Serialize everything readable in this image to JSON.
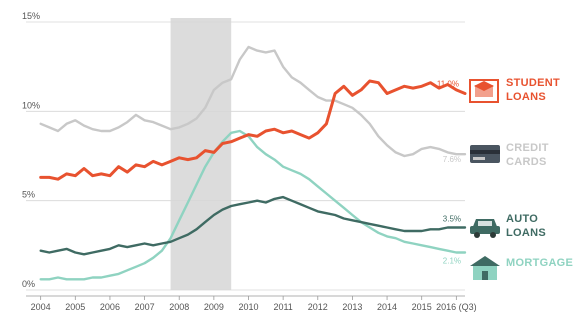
{
  "chart_data": {
    "type": "line",
    "ylim": [
      0,
      15
    ],
    "yticks": [
      "0%",
      "5%",
      "10%",
      "15%"
    ],
    "ytick_values": [
      0,
      5,
      10,
      15
    ],
    "xlim": [
      2003.75,
      2016.25
    ],
    "xtick_labels": [
      "2004",
      "2005",
      "2006",
      "2007",
      "2008",
      "2009",
      "2010",
      "2011",
      "2012",
      "2013",
      "2014",
      "2015",
      "2016 (Q3)"
    ],
    "xtick_values": [
      2004,
      2005,
      2006,
      2007,
      2008,
      2009,
      2010,
      2011,
      2012,
      2013,
      2014,
      2015,
      2016
    ],
    "shaded_period": [
      2007.75,
      2009.5
    ],
    "grid": "horizontal",
    "series": [
      {
        "name": "STUDENT LOANS",
        "color": "#e8522f",
        "icon": "graduation-cap-icon",
        "end_label": "11.0%",
        "points": [
          [
            2004,
            6.3
          ],
          [
            2004.25,
            6.3
          ],
          [
            2004.5,
            6.2
          ],
          [
            2004.75,
            6.5
          ],
          [
            2005,
            6.4
          ],
          [
            2005.25,
            6.8
          ],
          [
            2005.5,
            6.4
          ],
          [
            2005.75,
            6.5
          ],
          [
            2006,
            6.4
          ],
          [
            2006.25,
            6.9
          ],
          [
            2006.5,
            6.6
          ],
          [
            2006.75,
            7.0
          ],
          [
            2007,
            6.9
          ],
          [
            2007.25,
            7.2
          ],
          [
            2007.5,
            7.0
          ],
          [
            2007.75,
            7.2
          ],
          [
            2008,
            7.4
          ],
          [
            2008.25,
            7.3
          ],
          [
            2008.5,
            7.4
          ],
          [
            2008.75,
            7.8
          ],
          [
            2009,
            7.7
          ],
          [
            2009.25,
            8.2
          ],
          [
            2009.5,
            8.3
          ],
          [
            2009.75,
            8.5
          ],
          [
            2010,
            8.7
          ],
          [
            2010.25,
            8.6
          ],
          [
            2010.5,
            8.9
          ],
          [
            2010.75,
            9.0
          ],
          [
            2011,
            8.8
          ],
          [
            2011.25,
            8.9
          ],
          [
            2011.5,
            8.7
          ],
          [
            2011.75,
            8.5
          ],
          [
            2012,
            8.8
          ],
          [
            2012.25,
            9.3
          ],
          [
            2012.5,
            11.0
          ],
          [
            2012.75,
            11.4
          ],
          [
            2013,
            10.9
          ],
          [
            2013.25,
            11.2
          ],
          [
            2013.5,
            11.7
          ],
          [
            2013.75,
            11.6
          ],
          [
            2014,
            11.0
          ],
          [
            2014.25,
            11.2
          ],
          [
            2014.5,
            11.4
          ],
          [
            2014.75,
            11.3
          ],
          [
            2015,
            11.4
          ],
          [
            2015.25,
            11.6
          ],
          [
            2015.5,
            11.3
          ],
          [
            2015.75,
            11.5
          ],
          [
            2016,
            11.2
          ],
          [
            2016.25,
            11.0
          ]
        ]
      },
      {
        "name": "CREDIT CARDS",
        "color": "#c8c8c8",
        "icon": "credit-card-icon",
        "end_label": "7.6%",
        "points": [
          [
            2004,
            9.3
          ],
          [
            2004.25,
            9.1
          ],
          [
            2004.5,
            8.9
          ],
          [
            2004.75,
            9.3
          ],
          [
            2005,
            9.5
          ],
          [
            2005.25,
            9.2
          ],
          [
            2005.5,
            9.0
          ],
          [
            2005.75,
            8.9
          ],
          [
            2006,
            8.9
          ],
          [
            2006.25,
            9.1
          ],
          [
            2006.5,
            9.4
          ],
          [
            2006.75,
            9.8
          ],
          [
            2007,
            9.5
          ],
          [
            2007.25,
            9.4
          ],
          [
            2007.5,
            9.2
          ],
          [
            2007.75,
            9.0
          ],
          [
            2008,
            9.1
          ],
          [
            2008.25,
            9.3
          ],
          [
            2008.5,
            9.6
          ],
          [
            2008.75,
            10.2
          ],
          [
            2009,
            11.2
          ],
          [
            2009.25,
            11.6
          ],
          [
            2009.5,
            11.8
          ],
          [
            2009.75,
            12.9
          ],
          [
            2010,
            13.6
          ],
          [
            2010.25,
            13.4
          ],
          [
            2010.5,
            13.3
          ],
          [
            2010.75,
            13.4
          ],
          [
            2011,
            12.5
          ],
          [
            2011.25,
            11.9
          ],
          [
            2011.5,
            11.6
          ],
          [
            2011.75,
            11.2
          ],
          [
            2012,
            10.8
          ],
          [
            2012.25,
            10.6
          ],
          [
            2012.5,
            10.6
          ],
          [
            2012.75,
            10.4
          ],
          [
            2013,
            10.2
          ],
          [
            2013.25,
            9.8
          ],
          [
            2013.5,
            9.3
          ],
          [
            2013.75,
            8.6
          ],
          [
            2014,
            8.1
          ],
          [
            2014.25,
            7.7
          ],
          [
            2014.5,
            7.5
          ],
          [
            2014.75,
            7.6
          ],
          [
            2015,
            7.9
          ],
          [
            2015.25,
            8.0
          ],
          [
            2015.5,
            7.9
          ],
          [
            2015.75,
            7.7
          ],
          [
            2016,
            7.6
          ],
          [
            2016.25,
            7.6
          ]
        ]
      },
      {
        "name": "AUTO LOANS",
        "color": "#3f6b63",
        "icon": "car-icon",
        "end_label": "3.5%",
        "points": [
          [
            2004,
            2.2
          ],
          [
            2004.25,
            2.1
          ],
          [
            2004.5,
            2.2
          ],
          [
            2004.75,
            2.3
          ],
          [
            2005,
            2.1
          ],
          [
            2005.25,
            2.0
          ],
          [
            2005.5,
            2.1
          ],
          [
            2005.75,
            2.2
          ],
          [
            2006,
            2.3
          ],
          [
            2006.25,
            2.5
          ],
          [
            2006.5,
            2.4
          ],
          [
            2006.75,
            2.5
          ],
          [
            2007,
            2.6
          ],
          [
            2007.25,
            2.5
          ],
          [
            2007.5,
            2.6
          ],
          [
            2007.75,
            2.7
          ],
          [
            2008,
            2.9
          ],
          [
            2008.25,
            3.1
          ],
          [
            2008.5,
            3.4
          ],
          [
            2008.75,
            3.8
          ],
          [
            2009,
            4.2
          ],
          [
            2009.25,
            4.5
          ],
          [
            2009.5,
            4.7
          ],
          [
            2009.75,
            4.8
          ],
          [
            2010,
            4.9
          ],
          [
            2010.25,
            5.0
          ],
          [
            2010.5,
            4.9
          ],
          [
            2010.75,
            5.1
          ],
          [
            2011,
            5.2
          ],
          [
            2011.25,
            5.0
          ],
          [
            2011.5,
            4.8
          ],
          [
            2011.75,
            4.6
          ],
          [
            2012,
            4.4
          ],
          [
            2012.25,
            4.3
          ],
          [
            2012.5,
            4.2
          ],
          [
            2012.75,
            4.0
          ],
          [
            2013,
            3.9
          ],
          [
            2013.25,
            3.8
          ],
          [
            2013.5,
            3.7
          ],
          [
            2013.75,
            3.6
          ],
          [
            2014,
            3.5
          ],
          [
            2014.25,
            3.4
          ],
          [
            2014.5,
            3.3
          ],
          [
            2014.75,
            3.3
          ],
          [
            2015,
            3.3
          ],
          [
            2015.25,
            3.4
          ],
          [
            2015.5,
            3.4
          ],
          [
            2015.75,
            3.5
          ],
          [
            2016,
            3.5
          ],
          [
            2016.25,
            3.5
          ]
        ]
      },
      {
        "name": "MORTGAGE",
        "color": "#8fd3c1",
        "icon": "house-icon",
        "end_label": "2.1%",
        "points": [
          [
            2004,
            0.6
          ],
          [
            2004.25,
            0.6
          ],
          [
            2004.5,
            0.7
          ],
          [
            2004.75,
            0.6
          ],
          [
            2005,
            0.6
          ],
          [
            2005.25,
            0.6
          ],
          [
            2005.5,
            0.7
          ],
          [
            2005.75,
            0.7
          ],
          [
            2006,
            0.8
          ],
          [
            2006.25,
            0.9
          ],
          [
            2006.5,
            1.1
          ],
          [
            2006.75,
            1.3
          ],
          [
            2007,
            1.5
          ],
          [
            2007.25,
            1.8
          ],
          [
            2007.5,
            2.2
          ],
          [
            2007.75,
            2.9
          ],
          [
            2008,
            3.9
          ],
          [
            2008.25,
            4.9
          ],
          [
            2008.5,
            5.9
          ],
          [
            2008.75,
            6.9
          ],
          [
            2009,
            7.7
          ],
          [
            2009.25,
            8.3
          ],
          [
            2009.5,
            8.8
          ],
          [
            2009.75,
            8.9
          ],
          [
            2010,
            8.6
          ],
          [
            2010.25,
            8.0
          ],
          [
            2010.5,
            7.6
          ],
          [
            2010.75,
            7.3
          ],
          [
            2011,
            6.9
          ],
          [
            2011.25,
            6.7
          ],
          [
            2011.5,
            6.5
          ],
          [
            2011.75,
            6.2
          ],
          [
            2012,
            5.8
          ],
          [
            2012.25,
            5.4
          ],
          [
            2012.5,
            5.0
          ],
          [
            2012.75,
            4.6
          ],
          [
            2013,
            4.2
          ],
          [
            2013.25,
            3.8
          ],
          [
            2013.5,
            3.5
          ],
          [
            2013.75,
            3.2
          ],
          [
            2014,
            3.0
          ],
          [
            2014.25,
            2.9
          ],
          [
            2014.5,
            2.7
          ],
          [
            2014.75,
            2.6
          ],
          [
            2015,
            2.5
          ],
          [
            2015.25,
            2.4
          ],
          [
            2015.5,
            2.3
          ],
          [
            2015.75,
            2.2
          ],
          [
            2016,
            2.1
          ],
          [
            2016.25,
            2.1
          ]
        ]
      }
    ]
  }
}
